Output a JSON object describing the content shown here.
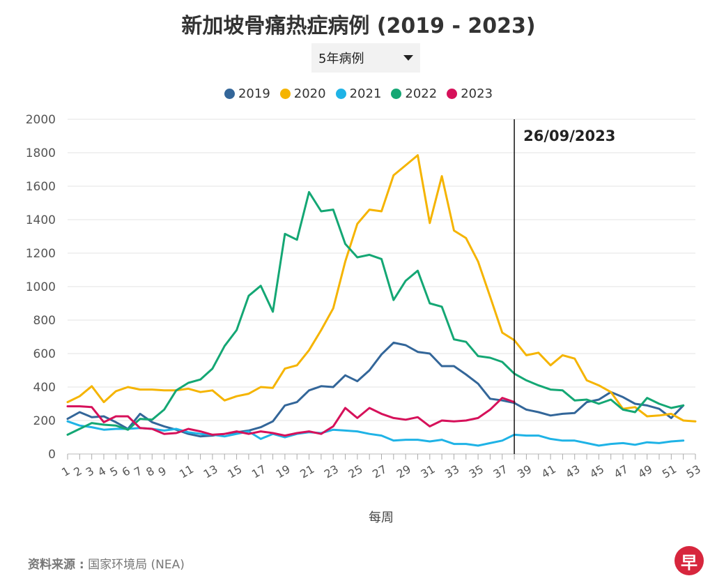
{
  "title": "新加坡骨痛热症病例 (2019 - 2023)",
  "dropdown": {
    "selected": "5年病例"
  },
  "source": {
    "label": "资料来源 :",
    "text": "国家环境局 (NEA)"
  },
  "logo_text": "早",
  "colors": {
    "2019": "#336699",
    "2020": "#f5b400",
    "2021": "#1fb3e6",
    "2022": "#14a774",
    "2023": "#d6115a"
  },
  "chart_data": {
    "type": "line",
    "title": "新加坡骨痛热症病例 (2019 - 2023)",
    "xlabel": "每周",
    "ylabel": "",
    "xlim": [
      1,
      53
    ],
    "ylim": [
      0,
      2000
    ],
    "yticks": [
      0,
      200,
      400,
      600,
      800,
      1000,
      1200,
      1400,
      1600,
      1800,
      2000
    ],
    "xticks": [
      "1",
      "2",
      "3",
      "4",
      "5",
      "6",
      "7",
      "8",
      "9",
      "11",
      "13",
      "15",
      "17",
      "19",
      "21",
      "23",
      "25",
      "27",
      "29",
      "31",
      "33",
      "35",
      "37",
      "39",
      "41",
      "43",
      "45",
      "47",
      "49",
      "51",
      "53"
    ],
    "grid": true,
    "legend_position": "top",
    "annotation": {
      "label": "26/09/2023",
      "week": 38
    },
    "series": [
      {
        "name": "2019",
        "color": "#336699",
        "x": [
          1,
          2,
          3,
          4,
          5,
          6,
          7,
          8,
          9,
          10,
          11,
          12,
          13,
          14,
          15,
          16,
          17,
          18,
          19,
          20,
          21,
          22,
          23,
          24,
          25,
          26,
          27,
          28,
          29,
          30,
          31,
          32,
          33,
          34,
          35,
          36,
          37,
          38,
          39,
          40,
          41,
          42,
          43,
          44,
          45,
          46,
          47,
          48,
          49,
          50,
          51,
          52
        ],
        "values": [
          210,
          250,
          220,
          225,
          190,
          150,
          240,
          190,
          165,
          145,
          120,
          105,
          110,
          120,
          130,
          140,
          160,
          195,
          290,
          310,
          380,
          405,
          400,
          470,
          435,
          500,
          595,
          665,
          650,
          610,
          600,
          525,
          525,
          475,
          420,
          330,
          320,
          305,
          265,
          250,
          230,
          240,
          245,
          310,
          325,
          370,
          340,
          300,
          290,
          270,
          215,
          290
        ]
      },
      {
        "name": "2020",
        "color": "#f5b400",
        "x": [
          1,
          2,
          3,
          4,
          5,
          6,
          7,
          8,
          9,
          10,
          11,
          12,
          13,
          14,
          15,
          16,
          17,
          18,
          19,
          20,
          21,
          22,
          23,
          24,
          25,
          26,
          27,
          28,
          29,
          30,
          31,
          32,
          33,
          34,
          35,
          36,
          37,
          38,
          39,
          40,
          41,
          42,
          43,
          44,
          45,
          46,
          47,
          48,
          49,
          50,
          51,
          52,
          53
        ],
        "values": [
          310,
          345,
          405,
          310,
          375,
          400,
          385,
          385,
          380,
          380,
          390,
          370,
          380,
          320,
          345,
          360,
          400,
          395,
          510,
          530,
          620,
          740,
          870,
          1150,
          1375,
          1460,
          1450,
          1665,
          1725,
          1785,
          1380,
          1660,
          1335,
          1290,
          1150,
          940,
          725,
          680,
          590,
          605,
          530,
          590,
          570,
          440,
          410,
          370,
          270,
          280,
          225,
          230,
          240,
          200,
          195
        ]
      },
      {
        "name": "2021",
        "color": "#1fb3e6",
        "x": [
          1,
          2,
          3,
          4,
          5,
          6,
          7,
          8,
          9,
          10,
          11,
          12,
          13,
          14,
          15,
          16,
          17,
          18,
          19,
          20,
          21,
          22,
          23,
          24,
          25,
          26,
          27,
          28,
          29,
          30,
          31,
          32,
          33,
          34,
          35,
          36,
          37,
          38,
          39,
          40,
          41,
          42,
          43,
          44,
          45,
          46,
          47,
          48,
          49,
          50,
          51,
          52
        ],
        "values": [
          195,
          170,
          160,
          145,
          150,
          150,
          155,
          150,
          140,
          150,
          130,
          120,
          115,
          105,
          120,
          135,
          90,
          120,
          100,
          120,
          130,
          125,
          145,
          140,
          135,
          120,
          110,
          80,
          85,
          85,
          75,
          85,
          60,
          60,
          50,
          65,
          80,
          115,
          110,
          110,
          90,
          80,
          80,
          65,
          50,
          60,
          65,
          55,
          70,
          65,
          75,
          80
        ]
      },
      {
        "name": "2022",
        "color": "#14a774",
        "x": [
          1,
          2,
          3,
          4,
          5,
          6,
          7,
          8,
          9,
          10,
          11,
          12,
          13,
          14,
          15,
          16,
          17,
          18,
          19,
          20,
          21,
          22,
          23,
          24,
          25,
          26,
          27,
          28,
          29,
          30,
          31,
          32,
          33,
          34,
          35,
          36,
          37,
          38,
          39,
          40,
          41,
          42,
          43,
          44,
          45,
          46,
          47,
          48,
          49,
          50,
          51,
          52
        ],
        "values": [
          115,
          150,
          185,
          175,
          170,
          145,
          210,
          205,
          265,
          380,
          425,
          445,
          510,
          645,
          740,
          945,
          1005,
          850,
          1315,
          1280,
          1565,
          1450,
          1460,
          1255,
          1175,
          1190,
          1165,
          920,
          1035,
          1095,
          900,
          880,
          685,
          670,
          585,
          575,
          550,
          480,
          440,
          410,
          385,
          380,
          320,
          325,
          300,
          325,
          265,
          250,
          335,
          300,
          275,
          290
        ]
      },
      {
        "name": "2023",
        "color": "#d6115a",
        "x": [
          1,
          2,
          3,
          4,
          5,
          6,
          7,
          8,
          9,
          10,
          11,
          12,
          13,
          14,
          15,
          16,
          17,
          18,
          19,
          20,
          21,
          22,
          23,
          24,
          25,
          26,
          27,
          28,
          29,
          30,
          31,
          32,
          33,
          34,
          35,
          36,
          37,
          38
        ],
        "values": [
          285,
          285,
          280,
          190,
          225,
          225,
          155,
          150,
          120,
          125,
          150,
          135,
          115,
          120,
          135,
          120,
          135,
          125,
          110,
          125,
          135,
          120,
          165,
          275,
          215,
          275,
          240,
          215,
          205,
          220,
          165,
          200,
          195,
          200,
          215,
          265,
          335,
          310
        ]
      }
    ]
  }
}
